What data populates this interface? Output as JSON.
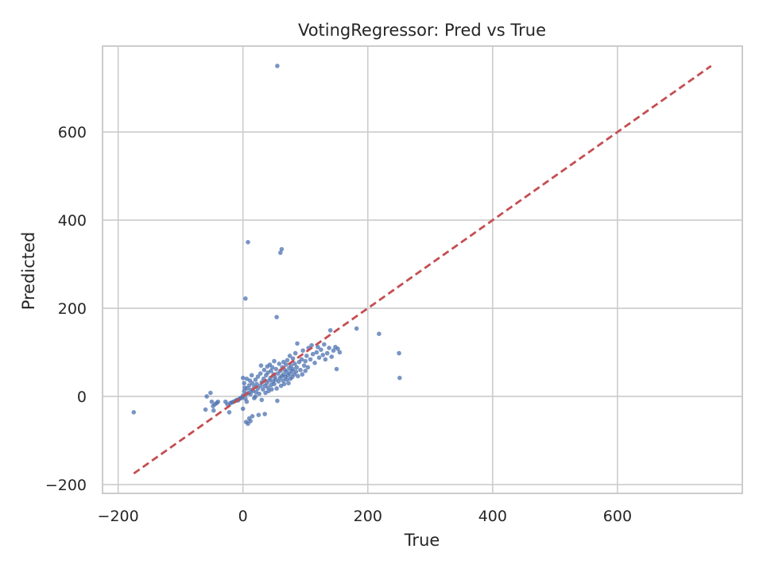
{
  "chart_data": {
    "type": "scatter",
    "title": "VotingRegressor: Pred vs True",
    "xlabel": "True",
    "ylabel": "Predicted",
    "xlim": [
      -225,
      800
    ],
    "ylim": [
      -220,
      795
    ],
    "xticks": [
      -200,
      0,
      200,
      400,
      600
    ],
    "xtick_labels": [
      "−200",
      "0",
      "200",
      "400",
      "600"
    ],
    "yticks": [
      -200,
      0,
      200,
      400,
      600
    ],
    "ytick_labels": [
      "−200",
      "0",
      "200",
      "400",
      "600"
    ],
    "grid": true,
    "colors": {
      "points": "#4c72b0",
      "reference_line": "#c44e52",
      "grid": "#cccccc"
    },
    "reference_line": {
      "x": [
        -175,
        750
      ],
      "y": [
        -175,
        750
      ],
      "style": "dashed"
    },
    "series": [
      {
        "points": [
          [
            -175,
            -36
          ],
          [
            -60,
            -30
          ],
          [
            -58,
            0
          ],
          [
            -52,
            8
          ],
          [
            -50,
            -12
          ],
          [
            -48,
            -22
          ],
          [
            -47,
            -32
          ],
          [
            -45,
            -18
          ],
          [
            -42,
            -15
          ],
          [
            -40,
            -12
          ],
          [
            -28,
            -12
          ],
          [
            -25,
            -18
          ],
          [
            -22,
            -36
          ],
          [
            -20,
            -15
          ],
          [
            -18,
            -14
          ],
          [
            -15,
            -12
          ],
          [
            -12,
            -10
          ],
          [
            -10,
            -8
          ],
          [
            -8,
            -9
          ],
          [
            -6,
            -6
          ],
          [
            -4,
            -4
          ],
          [
            -2,
            -3
          ],
          [
            0,
            -28
          ],
          [
            0,
            2
          ],
          [
            0,
            42
          ],
          [
            2,
            30
          ],
          [
            2,
            12
          ],
          [
            3,
            20
          ],
          [
            4,
            -5
          ],
          [
            4,
            222
          ],
          [
            5,
            5
          ],
          [
            5,
            -58
          ],
          [
            6,
            40
          ],
          [
            6,
            -12
          ],
          [
            7,
            18
          ],
          [
            8,
            350
          ],
          [
            8,
            -62
          ],
          [
            9,
            8
          ],
          [
            10,
            25
          ],
          [
            10,
            -50
          ],
          [
            11,
            36
          ],
          [
            12,
            5
          ],
          [
            12,
            -56
          ],
          [
            13,
            15
          ],
          [
            14,
            48
          ],
          [
            15,
            -45
          ],
          [
            15,
            30
          ],
          [
            16,
            12
          ],
          [
            18,
            22
          ],
          [
            18,
            -4
          ],
          [
            20,
            38
          ],
          [
            20,
            0
          ],
          [
            21,
            10
          ],
          [
            22,
            28
          ],
          [
            24,
            45
          ],
          [
            24,
            18
          ],
          [
            25,
            -42
          ],
          [
            26,
            6
          ],
          [
            28,
            52
          ],
          [
            28,
            24
          ],
          [
            29,
            70
          ],
          [
            30,
            32
          ],
          [
            30,
            -8
          ],
          [
            32,
            16
          ],
          [
            33,
            40
          ],
          [
            34,
            60
          ],
          [
            35,
            24
          ],
          [
            35,
            -40
          ],
          [
            36,
            8
          ],
          [
            37,
            48
          ],
          [
            38,
            30
          ],
          [
            39,
            68
          ],
          [
            40,
            20
          ],
          [
            40,
            54
          ],
          [
            41,
            12
          ],
          [
            42,
            36
          ],
          [
            43,
            72
          ],
          [
            44,
            42
          ],
          [
            45,
            26
          ],
          [
            45,
            58
          ],
          [
            46,
            16
          ],
          [
            47,
            66
          ],
          [
            48,
            34
          ],
          [
            49,
            50
          ],
          [
            50,
            80
          ],
          [
            50,
            28
          ],
          [
            51,
            44
          ],
          [
            52,
            38
          ],
          [
            53,
            62
          ],
          [
            54,
            180
          ],
          [
            54,
            18
          ],
          [
            55,
            -10
          ],
          [
            55,
            750
          ],
          [
            56,
            52
          ],
          [
            57,
            34
          ],
          [
            58,
            74
          ],
          [
            59,
            42
          ],
          [
            60,
            326
          ],
          [
            60,
            58
          ],
          [
            61,
            24
          ],
          [
            62,
            334
          ],
          [
            62,
            46
          ],
          [
            63,
            66
          ],
          [
            64,
            36
          ],
          [
            65,
            78
          ],
          [
            65,
            50
          ],
          [
            66,
            28
          ],
          [
            67,
            60
          ],
          [
            68,
            44
          ],
          [
            69,
            72
          ],
          [
            70,
            38
          ],
          [
            70,
            56
          ],
          [
            71,
            82
          ],
          [
            72,
            48
          ],
          [
            73,
            30
          ],
          [
            74,
            64
          ],
          [
            75,
            92
          ],
          [
            75,
            52
          ],
          [
            76,
            40
          ],
          [
            77,
            70
          ],
          [
            78,
            58
          ],
          [
            79,
            44
          ],
          [
            80,
            86
          ],
          [
            80,
            62
          ],
          [
            82,
            50
          ],
          [
            83,
            74
          ],
          [
            84,
            98
          ],
          [
            85,
            56
          ],
          [
            86,
            66
          ],
          [
            87,
            120
          ],
          [
            88,
            46
          ],
          [
            90,
            78
          ],
          [
            92,
            60
          ],
          [
            94,
            84
          ],
          [
            95,
            50
          ],
          [
            96,
            104
          ],
          [
            98,
            70
          ],
          [
            100,
            58
          ],
          [
            100,
            80
          ],
          [
            102,
            92
          ],
          [
            104,
            66
          ],
          [
            105,
            110
          ],
          [
            108,
            84
          ],
          [
            110,
            116
          ],
          [
            112,
            96
          ],
          [
            115,
            76
          ],
          [
            118,
            100
          ],
          [
            120,
            112
          ],
          [
            122,
            88
          ],
          [
            125,
            106
          ],
          [
            128,
            94
          ],
          [
            130,
            118
          ],
          [
            132,
            84
          ],
          [
            135,
            98
          ],
          [
            138,
            110
          ],
          [
            140,
            150
          ],
          [
            142,
            90
          ],
          [
            145,
            104
          ],
          [
            148,
            112
          ],
          [
            150,
            62
          ],
          [
            152,
            108
          ],
          [
            155,
            100
          ],
          [
            182,
            154
          ],
          [
            218,
            142
          ],
          [
            250,
            98
          ],
          [
            251,
            42
          ]
        ]
      }
    ]
  }
}
